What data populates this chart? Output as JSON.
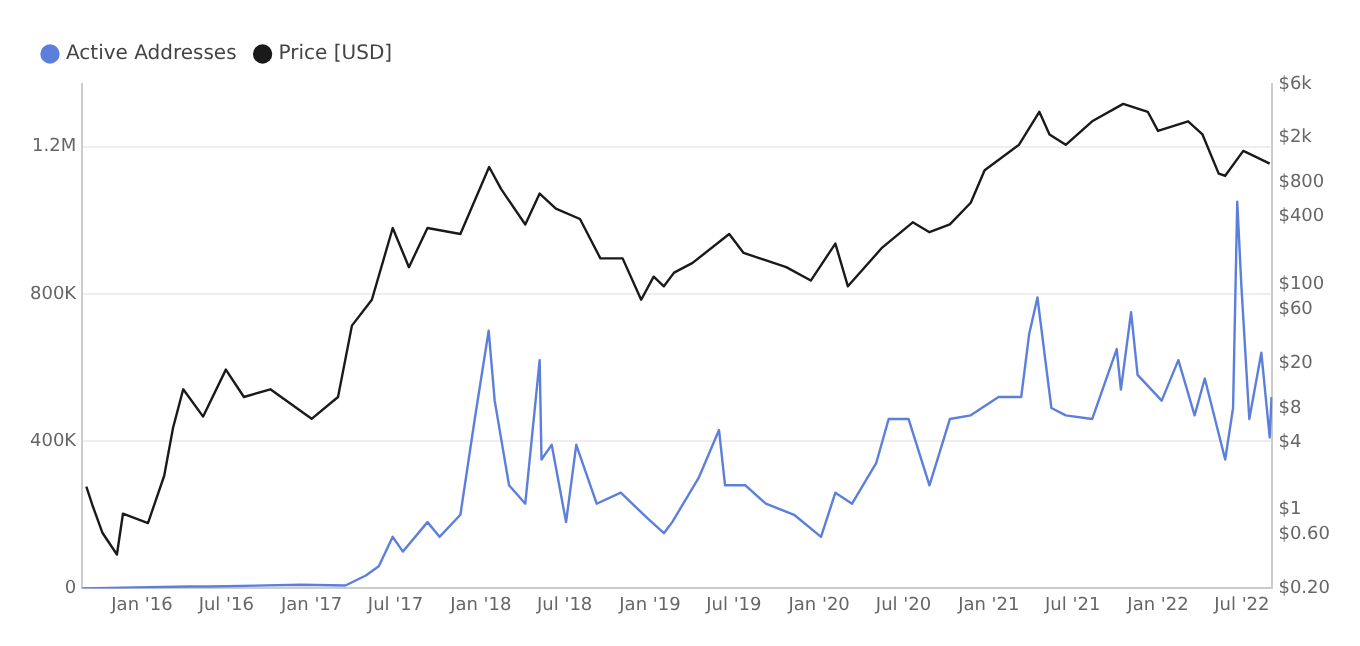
{
  "chart_data": {
    "type": "line",
    "legend": "top left",
    "grid": "y",
    "log": "y2",
    "marker": "none",
    "line_style": "solid",
    "xlim": [
      "2015-08-25",
      "2022-09-05"
    ],
    "xticks": [
      {
        "value": "2016-01",
        "label": "Jan '16"
      },
      {
        "value": "2016-07",
        "label": "Jul '16"
      },
      {
        "value": "2017-01",
        "label": "Jan '17"
      },
      {
        "value": "2017-07",
        "label": "Jul '17"
      },
      {
        "value": "2018-01",
        "label": "Jan '18"
      },
      {
        "value": "2018-07",
        "label": "Jul '18"
      },
      {
        "value": "2019-01",
        "label": "Jan '19"
      },
      {
        "value": "2019-07",
        "label": "Jul '19"
      },
      {
        "value": "2020-01",
        "label": "Jan '20"
      },
      {
        "value": "2020-07",
        "label": "Jul '20"
      },
      {
        "value": "2021-01",
        "label": "Jan '21"
      },
      {
        "value": "2021-07",
        "label": "Jul '21"
      },
      {
        "value": "2022-01",
        "label": "Jan '22"
      },
      {
        "value": "2022-07",
        "label": "Jul '22"
      }
    ],
    "ylim": [
      0,
      1370000
    ],
    "yticks": [
      0,
      {
        "value": 400000,
        "label": "400K"
      },
      {
        "value": 800000,
        "label": "800K"
      },
      {
        "value": 1200000,
        "label": "1.2M"
      }
    ],
    "y2lim": [
      0.2,
      6000
    ],
    "y2ticks": [
      {
        "value": 0.2,
        "label": "$0.20"
      },
      {
        "value": 0.6,
        "label": "$0.60"
      },
      {
        "value": 1,
        "label": "$1"
      },
      {
        "value": 4,
        "label": "$4"
      },
      {
        "value": 8,
        "label": "$8"
      },
      {
        "value": 20,
        "label": "$20"
      },
      {
        "value": 60,
        "label": "$60"
      },
      {
        "value": 100,
        "label": "$100"
      },
      {
        "value": 400,
        "label": "$400"
      },
      {
        "value": 800,
        "label": "$800"
      },
      {
        "value": 2000,
        "label": "$2k"
      },
      {
        "value": 6000,
        "label": "$6k"
      }
    ],
    "series": [
      {
        "name": "Active Addresses",
        "color": "#5b7fdb",
        "x": [
          "2015-08-25",
          "2016-04-12",
          "2016-05-26",
          "2016-12-09",
          "2017-03-15",
          "2017-04-28",
          "2017-05-26",
          "2017-06-25",
          "2017-07-17",
          "2017-09-08",
          "2017-10-04",
          "2017-11-18",
          "2017-12-19",
          "2018-01-18",
          "2018-01-31",
          "2018-03-03",
          "2018-04-07",
          "2018-05-08",
          "2018-05-12",
          "2018-06-03",
          "2018-07-04",
          "2018-07-26",
          "2018-09-08",
          "2018-10-30",
          "2018-12-27",
          "2019-01-31",
          "2019-02-18",
          "2019-04-16",
          "2019-05-30",
          "2019-06-12",
          "2019-07-26",
          "2019-09-08",
          "2019-11-08",
          "2020-01-05",
          "2020-02-05",
          "2020-03-12",
          "2020-05-03",
          "2020-05-30",
          "2020-07-12",
          "2020-08-26",
          "2020-10-09",
          "2020-11-23",
          "2021-01-22",
          "2021-03-12",
          "2021-03-29",
          "2021-04-16",
          "2021-05-16",
          "2021-06-16",
          "2021-08-12",
          "2021-10-04",
          "2021-10-13",
          "2021-11-04",
          "2021-11-18",
          "2022-01-09",
          "2022-02-14",
          "2022-03-21",
          "2022-04-12",
          "2022-05-26",
          "2022-06-12",
          "2022-06-21",
          "2022-06-30",
          "2022-07-17",
          "2022-08-12",
          "2022-08-30",
          "2022-09-03"
        ],
        "values": [
          0,
          5000,
          5000,
          10000,
          8000,
          35000,
          60000,
          140000,
          100000,
          180000,
          140000,
          200000,
          460000,
          700000,
          510000,
          280000,
          230000,
          620000,
          350000,
          390000,
          180000,
          390000,
          230000,
          260000,
          190000,
          150000,
          180000,
          300000,
          430000,
          280000,
          280000,
          230000,
          200000,
          140000,
          260000,
          230000,
          340000,
          460000,
          460000,
          280000,
          460000,
          470000,
          520000,
          520000,
          690000,
          790000,
          490000,
          470000,
          460000,
          650000,
          540000,
          750000,
          580000,
          510000,
          620000,
          470000,
          570000,
          350000,
          490000,
          1050000,
          820000,
          460000,
          640000,
          410000,
          520000
        ]
      },
      {
        "name": "Price [USD]",
        "color": "#1a1a1a",
        "axis": "y2",
        "x": [
          "2015-09-03",
          "2015-09-16",
          "2015-10-08",
          "2015-11-08",
          "2015-11-21",
          "2016-01-14",
          "2016-02-18",
          "2016-03-08",
          "2016-03-30",
          "2016-05-12",
          "2016-06-30",
          "2016-08-08",
          "2016-10-04",
          "2017-01-01",
          "2017-02-27",
          "2017-03-29",
          "2017-05-11",
          "2017-06-25",
          "2017-07-30",
          "2017-09-08",
          "2017-11-18",
          "2018-01-19",
          "2018-02-14",
          "2018-04-07",
          "2018-05-08",
          "2018-06-12",
          "2018-08-03",
          "2018-09-16",
          "2018-11-03",
          "2018-12-13",
          "2019-01-09",
          "2019-01-31",
          "2019-02-22",
          "2019-04-03",
          "2019-06-21",
          "2019-07-22",
          "2019-10-22",
          "2019-12-14",
          "2020-02-05",
          "2020-03-03",
          "2020-05-16",
          "2020-07-21",
          "2020-08-26",
          "2020-10-09",
          "2020-11-23",
          "2020-12-23",
          "2021-03-07",
          "2021-04-20",
          "2021-05-12",
          "2021-06-16",
          "2021-08-12",
          "2021-10-18",
          "2021-12-10",
          "2022-01-01",
          "2022-03-07",
          "2022-04-07",
          "2022-05-12",
          "2022-05-26",
          "2022-07-04",
          "2022-07-30",
          "2022-08-30"
        ],
        "values": [
          1.6,
          1.1,
          0.62,
          0.4,
          0.92,
          0.76,
          2,
          5.3,
          11.7,
          6.7,
          17.5,
          10,
          11.7,
          6.4,
          10,
          43,
          73,
          316,
          142,
          316,
          280,
          1100,
          700,
          340,
          640,
          470,
          380,
          170,
          170,
          73,
          117,
          96,
          127,
          155,
          280,
          190,
          142,
          108,
          230,
          96,
          212,
          355,
          290,
          340,
          530,
          1030,
          1730,
          3400,
          2140,
          1730,
          2800,
          4000,
          3400,
          2300,
          2800,
          2140,
          960,
          920,
          1530,
          1360,
          1180
        ]
      }
    ]
  }
}
